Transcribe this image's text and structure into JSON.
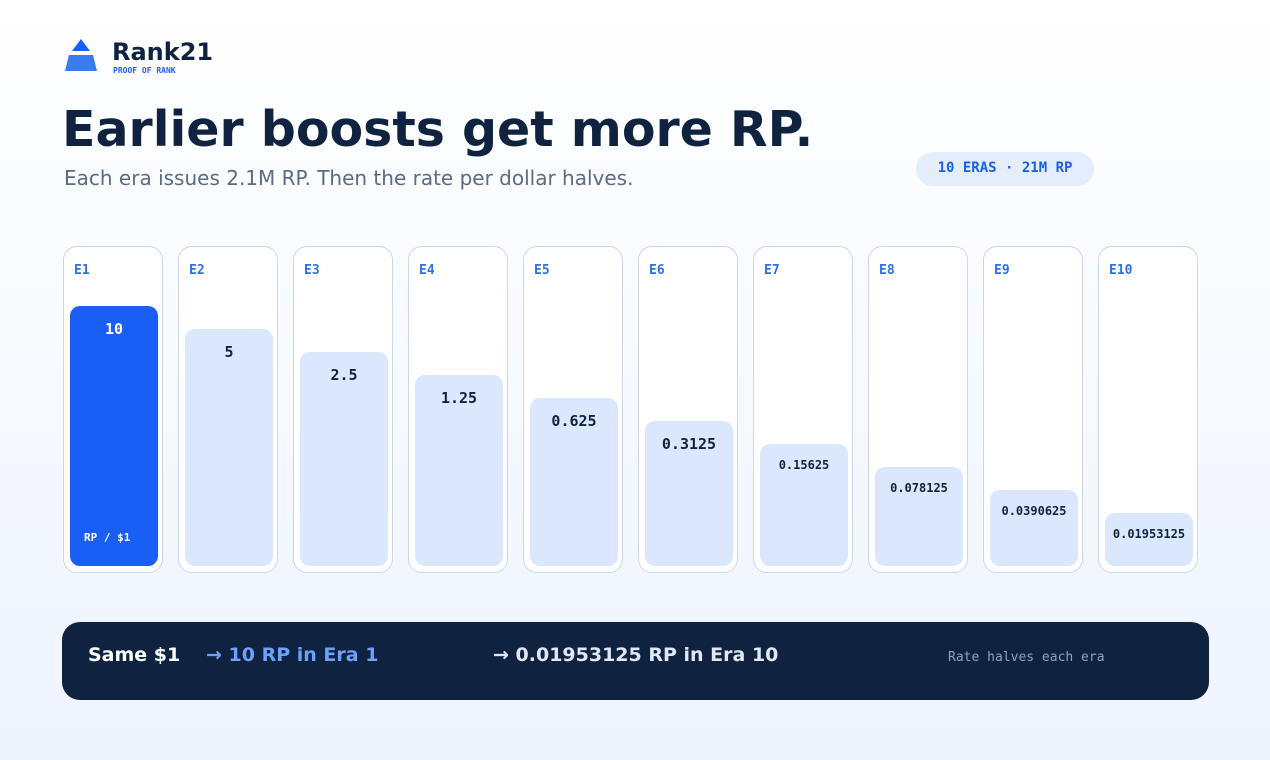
{
  "brand": {
    "name": "Rank21",
    "tagline": "PROOF OF RANK"
  },
  "header": {
    "title": "Earlier boosts get more RP.",
    "subtitle": "Each era issues 2.1M RP. Then the rate per dollar halves.",
    "badge": "10 ERAS · 21M RP"
  },
  "eras": {
    "unit_label": "RP / $1",
    "items": [
      {
        "label": "E1",
        "rate": 10
      },
      {
        "label": "E2",
        "rate": 5
      },
      {
        "label": "E3",
        "rate": 2.5
      },
      {
        "label": "E4",
        "rate": 1.25
      },
      {
        "label": "E5",
        "rate": 0.625
      },
      {
        "label": "E6",
        "rate": 0.3125
      },
      {
        "label": "E7",
        "rate": 0.15625
      },
      {
        "label": "E8",
        "rate": 0.078125
      },
      {
        "label": "E9",
        "rate": 0.0390625
      },
      {
        "label": "E10",
        "rate": 0.01953125
      }
    ]
  },
  "footer": {
    "lead": "Same $1",
    "first": "→ 10 RP in Era 1",
    "last": "→ 0.01953125 RP in Era 10",
    "note": "Rate halves each era"
  }
}
